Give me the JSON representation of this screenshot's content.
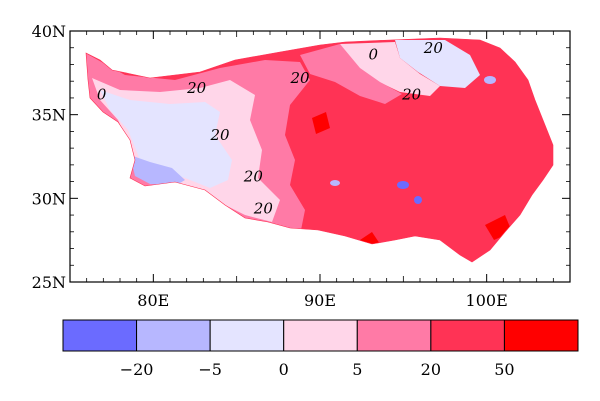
{
  "map": {
    "y_axis": {
      "ticks": [
        {
          "value": 40,
          "label": "40N"
        },
        {
          "value": 35,
          "label": "35N"
        },
        {
          "value": 30,
          "label": "30N"
        },
        {
          "value": 25,
          "label": "25N"
        }
      ]
    },
    "x_axis": {
      "ticks": [
        {
          "value": 80,
          "label": "80E"
        },
        {
          "value": 90,
          "label": "90E"
        },
        {
          "value": 100,
          "label": "100E"
        }
      ]
    },
    "lon_range": [
      75,
      105
    ],
    "lat_range": [
      25,
      40
    ],
    "contour_labels": [
      {
        "text": "0",
        "lon": 76.9,
        "lat": 35.9
      },
      {
        "text": "20",
        "lon": 82.6,
        "lat": 36.3
      },
      {
        "text": "20",
        "lon": 88.8,
        "lat": 36.9
      },
      {
        "text": "0",
        "lon": 93.2,
        "lat": 38.3
      },
      {
        "text": "20",
        "lon": 96.8,
        "lat": 38.7
      },
      {
        "text": "20",
        "lon": 95.5,
        "lat": 35.9
      },
      {
        "text": "20",
        "lon": 84.0,
        "lat": 33.5
      },
      {
        "text": "20",
        "lon": 86.0,
        "lat": 31.0
      },
      {
        "text": "20",
        "lon": 86.6,
        "lat": 29.1
      }
    ]
  },
  "colorbar": {
    "colors": [
      "#6b6bff",
      "#b7b7ff",
      "#e4e4ff",
      "#ffd6e9",
      "#ff7aa6",
      "#ff3355",
      "#ff0000"
    ],
    "labels": [
      "−20",
      "−5",
      "0",
      "5",
      "20",
      "50"
    ]
  }
}
